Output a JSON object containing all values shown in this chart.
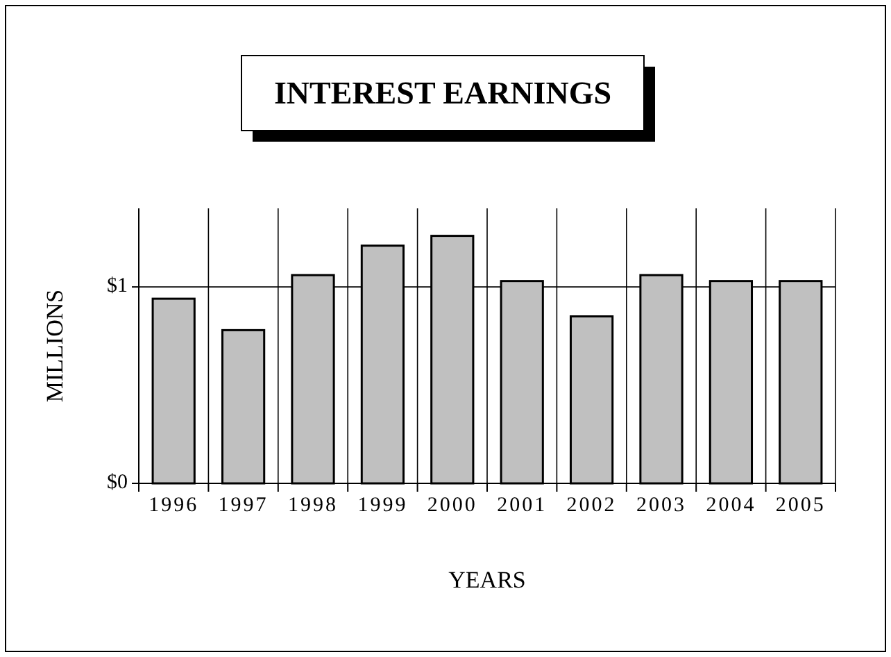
{
  "chart_data": {
    "type": "bar",
    "title": "INTEREST EARNINGS",
    "xlabel": "YEARS",
    "ylabel": "MILLIONS",
    "categories": [
      "1996",
      "1997",
      "1998",
      "1999",
      "2000",
      "2001",
      "2002",
      "2003",
      "2004",
      "2005"
    ],
    "values": [
      0.94,
      0.78,
      1.06,
      1.21,
      1.26,
      1.03,
      0.85,
      1.06,
      1.03,
      1.03
    ],
    "color": "#c0c0c0",
    "ylim": [
      0,
      1.4
    ],
    "yticks": [
      {
        "value": 0,
        "label": "$0"
      },
      {
        "value": 1,
        "label": "$1"
      }
    ],
    "grid": true
  }
}
